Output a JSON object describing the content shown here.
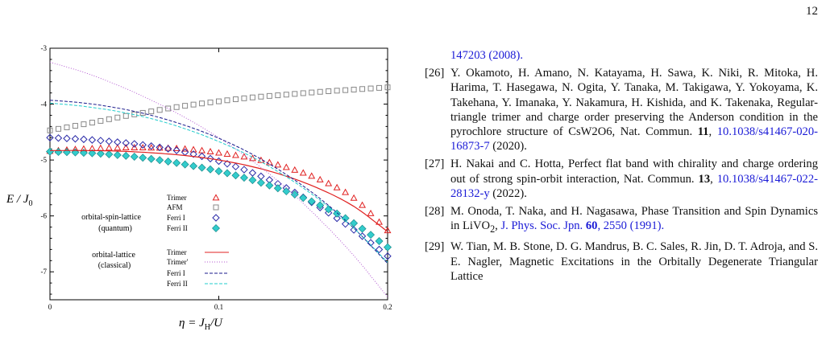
{
  "page": {
    "number": "12"
  },
  "figure": {
    "ylabel_main": "E / J",
    "ylabel_sub": "0",
    "xlabel": "η = J",
    "xlabel_sub": "H",
    "xlabel_tail": "/U",
    "legend": {
      "group_quantum_line1": "orbital-spin-lattice",
      "group_quantum_line2": "(quantum)",
      "group_classical_line1": "orbital-lattice",
      "group_classical_line2": "(classical)",
      "quantum_items": [
        "Trimer",
        "AFM",
        "Ferri I",
        "Ferri II"
      ],
      "classical_items": [
        "Trimer",
        "Trimer′",
        "Ferri I",
        "Ferri II"
      ]
    }
  },
  "chart_data": {
    "type": "scatter",
    "xlim": [
      0,
      0.2
    ],
    "ylim": [
      -7.5,
      -3
    ],
    "x_ticks": [
      "0",
      "0.1",
      "0.2"
    ],
    "y_ticks": [
      "-3",
      "-4",
      "-5",
      "-6",
      "-7"
    ],
    "grid": false,
    "legend_position": "bottom-left",
    "series": [
      {
        "name": "Trimer",
        "group": "orbital-spin-lattice (quantum)",
        "kind": "markers",
        "marker": "triangle-open",
        "color": "#e02020",
        "x": [
          0,
          0.02,
          0.04,
          0.06,
          0.08,
          0.1,
          0.12,
          0.14,
          0.16,
          0.18,
          0.2
        ],
        "y": [
          -4.84,
          -4.8,
          -4.78,
          -4.78,
          -4.8,
          -4.87,
          -4.97,
          -5.13,
          -5.35,
          -5.68,
          -6.26
        ]
      },
      {
        "name": "AFM",
        "group": "orbital-spin-lattice (quantum)",
        "kind": "markers",
        "marker": "square-open",
        "color": "#888888",
        "x": [
          0,
          0.02,
          0.04,
          0.06,
          0.08,
          0.1,
          0.12,
          0.14,
          0.16,
          0.18,
          0.2
        ],
        "y": [
          -4.47,
          -4.36,
          -4.24,
          -4.13,
          -4.03,
          -3.95,
          -3.88,
          -3.83,
          -3.78,
          -3.74,
          -3.7
        ]
      },
      {
        "name": "Ferri I",
        "group": "orbital-spin-lattice (quantum)",
        "kind": "markers",
        "marker": "diamond-open",
        "color": "#2a2aa8",
        "x": [
          0,
          0.02,
          0.04,
          0.06,
          0.08,
          0.1,
          0.12,
          0.14,
          0.16,
          0.18,
          0.2
        ],
        "y": [
          -4.6,
          -4.63,
          -4.68,
          -4.75,
          -4.86,
          -5.02,
          -5.23,
          -5.5,
          -5.85,
          -6.25,
          -6.72
        ]
      },
      {
        "name": "Ferri II",
        "group": "orbital-spin-lattice (quantum)",
        "kind": "markers",
        "marker": "diamond-filled",
        "color": "#33cccc",
        "x": [
          0,
          0.02,
          0.04,
          0.06,
          0.08,
          0.1,
          0.12,
          0.14,
          0.16,
          0.18,
          0.2
        ],
        "y": [
          -4.85,
          -4.87,
          -4.91,
          -4.98,
          -5.08,
          -5.2,
          -5.36,
          -5.56,
          -5.81,
          -6.13,
          -6.56
        ]
      },
      {
        "name": "Trimer",
        "group": "orbital-lattice (classical)",
        "kind": "line",
        "dash": "solid",
        "color": "#e02020",
        "x": [
          0,
          0.02,
          0.04,
          0.06,
          0.08,
          0.1,
          0.12,
          0.14,
          0.16,
          0.18,
          0.2
        ],
        "y": [
          -4.83,
          -4.83,
          -4.84,
          -4.87,
          -4.92,
          -5.0,
          -5.12,
          -5.29,
          -5.52,
          -5.83,
          -6.28
        ]
      },
      {
        "name": "Trimer′",
        "group": "orbital-lattice (classical)",
        "kind": "line",
        "dash": "dotted",
        "color": "#b45ad2",
        "x": [
          0,
          0.02,
          0.04,
          0.06,
          0.08,
          0.1,
          0.12,
          0.14,
          0.16,
          0.18,
          0.2
        ],
        "y": [
          -3.25,
          -3.43,
          -3.66,
          -3.93,
          -4.24,
          -4.6,
          -5.02,
          -5.5,
          -6.07,
          -6.71,
          -7.45
        ]
      },
      {
        "name": "Ferri I",
        "group": "orbital-lattice (classical)",
        "kind": "line",
        "dash": "dashed",
        "color": "#1a1a8c",
        "x": [
          0,
          0.02,
          0.04,
          0.06,
          0.08,
          0.1,
          0.12,
          0.14,
          0.16,
          0.18,
          0.2
        ],
        "y": [
          -3.93,
          -3.98,
          -4.07,
          -4.2,
          -4.38,
          -4.61,
          -4.9,
          -5.26,
          -5.69,
          -6.22,
          -6.85
        ]
      },
      {
        "name": "Ferri II",
        "group": "orbital-lattice (classical)",
        "kind": "line",
        "dash": "dashed",
        "color": "#22cccc",
        "x": [
          0,
          0.02,
          0.04,
          0.06,
          0.08,
          0.1,
          0.12,
          0.14,
          0.16,
          0.18,
          0.2
        ],
        "y": [
          -3.98,
          -4.04,
          -4.13,
          -4.26,
          -4.44,
          -4.67,
          -4.95,
          -5.3,
          -5.72,
          -6.22,
          -6.83
        ]
      }
    ]
  },
  "references": {
    "top_continuation": "147203 (2008).",
    "r26": {
      "num": "[26]",
      "text": "Y. Okamoto, H. Amano, N. Katayama, H. Sawa, K. Niki, R. Mitoka, H. Harima, T. Hasegawa, N. Ogita, Y. Tanaka, M. Takigawa, Y. Yokoyama, K. Takehana, Y. Imanaka, Y. Nakamura, H. Kishida, and K. Takenaka, Regular-triangle trimer and charge order preserving the Anderson condition in the pyrochlore structure of CsW2O6, Nat. Commun. ",
      "vol": "11",
      "sep": ", ",
      "doi": "10.1038/s41467-020-16873-7",
      "tail": " (2020)."
    },
    "r27": {
      "num": "[27]",
      "text": "H. Nakai and C. Hotta, Perfect flat band with chirality and charge ordering out of strong spin-orbit interaction, Nat. Commun. ",
      "vol": "13",
      "sep": ", ",
      "doi": "10.1038/s41467-022-28132-y",
      "tail": " (2022)."
    },
    "r28": {
      "num": "[28]",
      "text": "M. Onoda, T. Naka, and H. Nagasawa, Phase Transition and Spin Dynamics in LiVO",
      "sub": "2",
      "sep": ", ",
      "journal": "J. Phys. Soc. Jpn. ",
      "vol": "60",
      "pages": ", 2550 (1991)."
    },
    "r29": {
      "num": "[29]",
      "text": "W. Tian, M. B. Stone, D. G. Mandrus, B. C. Sales, R. Jin, D. T. Adroja, and S. E. Nagler, Magnetic Excitations in the Orbitally Degenerate Triangular Lattice"
    }
  }
}
